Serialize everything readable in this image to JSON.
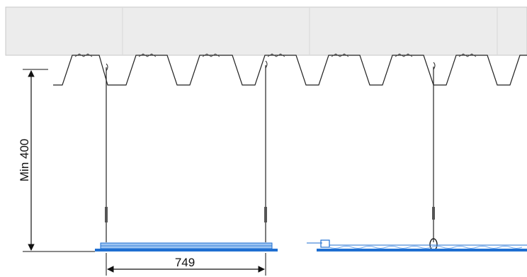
{
  "diagram": {
    "dimensions": {
      "vertical_label": "Min 400",
      "horizontal_label": "749"
    },
    "colors": {
      "slab": "#ececec",
      "slab_edge": "#c8c8c8",
      "line": "#222222",
      "panel": "#1f6fd1",
      "panel_light": "#6aa5ee"
    }
  }
}
